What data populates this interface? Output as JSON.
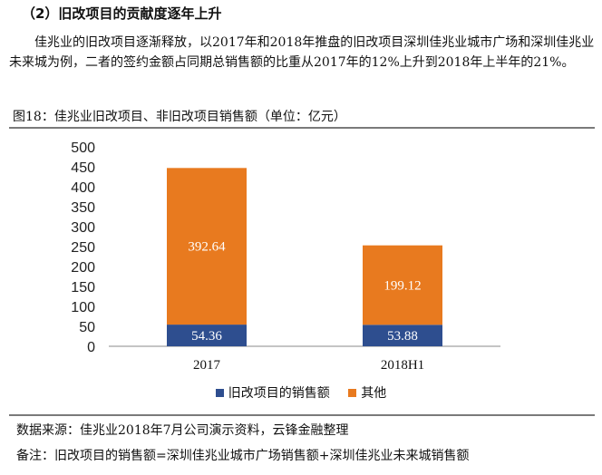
{
  "heading": "（2）旧改项目的贡献度逐年上升",
  "paragraph": "佳兆业的旧改项目逐渐释放，以2017年和2018年推盘的旧改项目深圳佳兆业城市广场和深圳佳兆业未来城为例，二者的签约金额占同期总销售额的比重从2017年的12%上升到2018年上半年的21%。",
  "figure_title": "图18：佳兆业旧改项目、非旧改项目销售额（单位：亿元）",
  "chart_data": {
    "type": "bar",
    "stacked": true,
    "categories": [
      "2017",
      "2018H1"
    ],
    "series": [
      {
        "name": "旧改项目的销售额",
        "values": [
          54.36,
          53.88
        ],
        "labels": [
          "54.36",
          "53.88"
        ],
        "color": "#2e4e8f",
        "label_color": "#ffffff"
      },
      {
        "name": "其他",
        "values": [
          392.64,
          199.12
        ],
        "labels": [
          "392.64",
          "199.12"
        ],
        "color": "#e87a1f",
        "label_color": "#ffffff"
      }
    ],
    "ylim": [
      0,
      500
    ],
    "yticks": [
      "0",
      "50",
      "100",
      "150",
      "200",
      "250",
      "300",
      "350",
      "400",
      "450",
      "500"
    ],
    "grid": false,
    "legend_position": "bottom"
  },
  "source": "数据来源：佳兆业2018年7月公司演示资料，云锋金融整理",
  "note": "备注：旧改项目的销售额=深圳佳兆业城市广场销售额+深圳佳兆业未来城销售额"
}
